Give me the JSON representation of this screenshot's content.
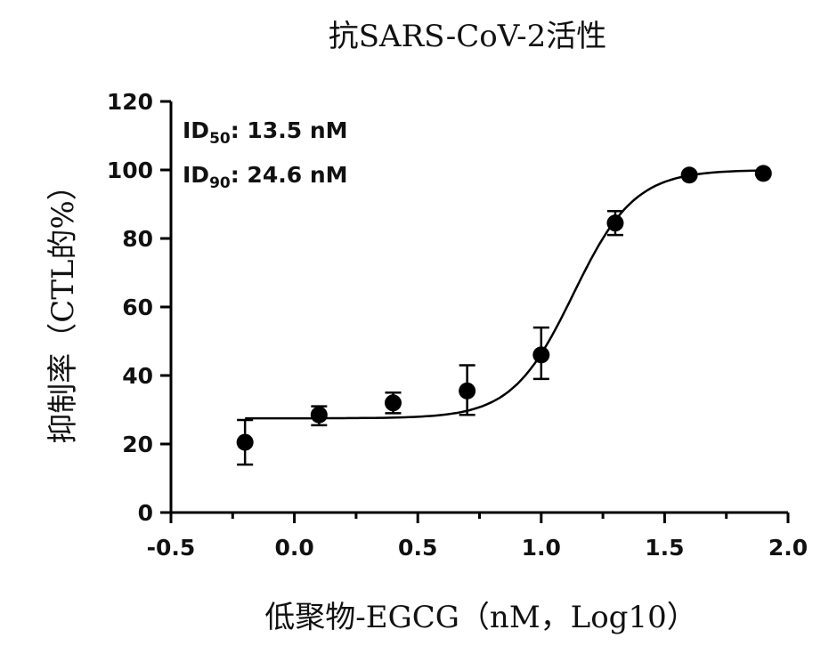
{
  "chart_data": {
    "type": "scatter",
    "title": "抗SARS-CoV-2活性",
    "xlabel": "低聚物-EGCG（nM，Log10）",
    "ylabel": "抑制率（CTL的%）",
    "xlim": [
      -0.5,
      2.0
    ],
    "ylim": [
      0,
      120
    ],
    "xticks": [
      "-0.5",
      "0.0",
      "0.5",
      "1.0",
      "1.5",
      "2.0"
    ],
    "xtick_values": [
      -0.5,
      0.0,
      0.5,
      1.0,
      1.5,
      2.0
    ],
    "yticks": [
      "0",
      "20",
      "40",
      "60",
      "80",
      "100",
      "120"
    ],
    "ytick_values": [
      0,
      20,
      40,
      60,
      80,
      100,
      120
    ],
    "grid": false,
    "points": [
      {
        "x": -0.2,
        "y": 20.5,
        "err_low": 14,
        "err_high": 27
      },
      {
        "x": 0.1,
        "y": 28.5,
        "err_low": 25.5,
        "err_high": 31
      },
      {
        "x": 0.4,
        "y": 32,
        "err_low": 29,
        "err_high": 35
      },
      {
        "x": 0.7,
        "y": 35.5,
        "err_low": 28.5,
        "err_high": 43
      },
      {
        "x": 1.0,
        "y": 46,
        "err_low": 39,
        "err_high": 54
      },
      {
        "x": 1.3,
        "y": 84.5,
        "err_low": 81,
        "err_high": 88
      },
      {
        "x": 1.6,
        "y": 98.5,
        "err_low": 98,
        "err_high": 99
      },
      {
        "x": 1.9,
        "y": 99,
        "err_low": 98.5,
        "err_high": 99.5
      }
    ],
    "fit_curve": {
      "bottom": 27.5,
      "top": 100,
      "log_ec50": 1.13,
      "hill": 3.5,
      "x_start": -0.2,
      "x_end": 1.9
    },
    "annotations": [
      {
        "prefix": "ID",
        "sub": "50",
        "text": ": 13.5 nM"
      },
      {
        "prefix": "ID",
        "sub": "90",
        "text": ": 24.6 nM"
      }
    ]
  }
}
